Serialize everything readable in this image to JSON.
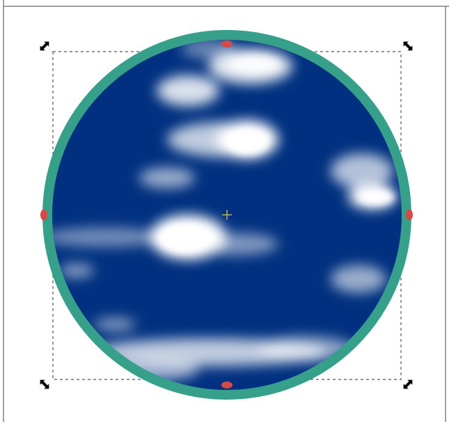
{
  "canvas": {
    "background_color": "#ffffff",
    "page_border_color": "#808080"
  },
  "selected_object": {
    "shape": "ellipse",
    "fill_pattern": "clouds",
    "fill_base_color": "#00307f",
    "fill_highlight_color": "#ffffff",
    "stroke_color": "#36a08a"
  },
  "selection": {
    "bbox_line_color": "#555555",
    "scale_handle_color": "#000000",
    "snap_handle_color": "#d44a4a",
    "center_marker_color": "#b5b35a",
    "icons": {
      "scale_handle": "diagonal-scale-arrow-icon",
      "node_handle": "node-handle-icon",
      "center": "rotation-center-icon"
    }
  }
}
